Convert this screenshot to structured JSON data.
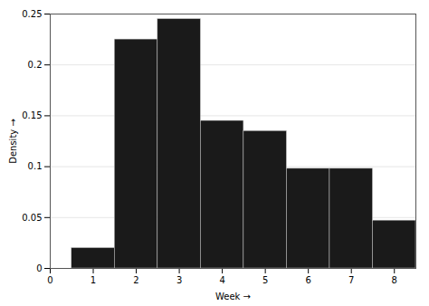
{
  "chart_data": {
    "type": "bar",
    "xlabel": "Week",
    "ylabel": "Density",
    "x": [
      1,
      2,
      3,
      4,
      5,
      6,
      7,
      8
    ],
    "values": [
      0.02,
      0.225,
      0.245,
      0.145,
      0.135,
      0.098,
      0.098,
      0.047
    ],
    "color": "#1a1a1a",
    "xlim": [
      0,
      8.5
    ],
    "xticks": [
      0,
      1,
      2,
      3,
      4,
      5,
      6,
      7,
      8
    ],
    "ylim": [
      0,
      0.25
    ],
    "yticks": [
      0,
      0.05,
      0.1,
      0.15,
      0.2,
      0.25
    ],
    "grid": true
  }
}
